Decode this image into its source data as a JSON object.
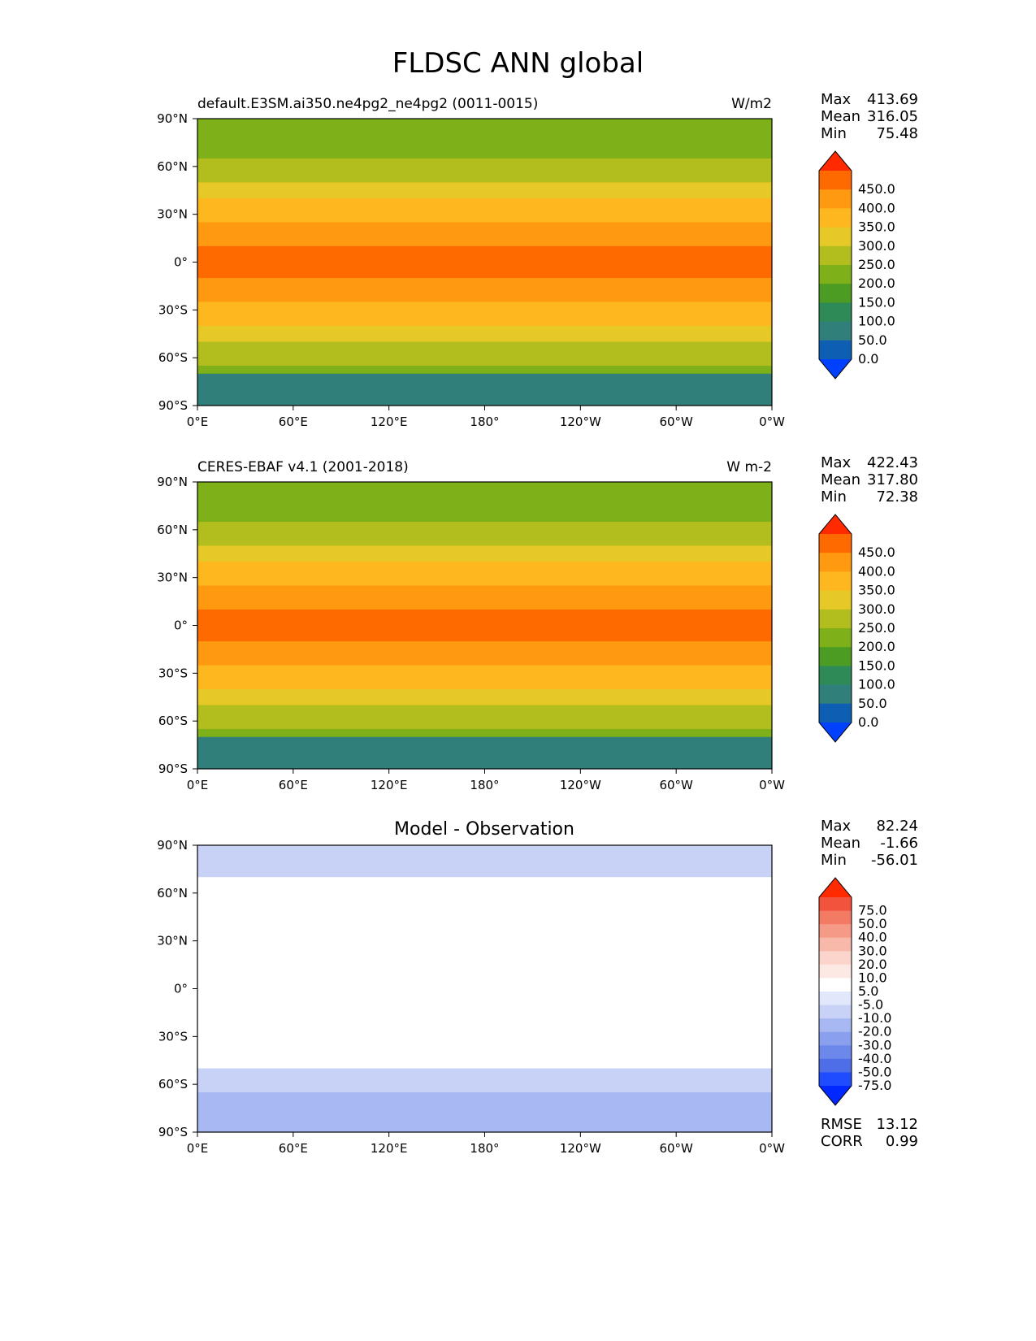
{
  "title": "FLDSC ANN global",
  "lat_ticks": [
    "90°N",
    "60°N",
    "30°N",
    "0°",
    "30°S",
    "60°S",
    "90°S"
  ],
  "lon_ticks": [
    "0°E",
    "60°E",
    "120°E",
    "180°",
    "120°W",
    "60°W",
    "0°W"
  ],
  "abs_colorbar": {
    "labels": [
      "450.0",
      "400.0",
      "350.0",
      "300.0",
      "250.0",
      "200.0",
      "150.0",
      "100.0",
      "50.0",
      "0.0"
    ],
    "colors": [
      "#ff2a00",
      "#ff6a00",
      "#ff9a10",
      "#ffb71f",
      "#e6c826",
      "#b2bd1e",
      "#7eb019",
      "#4c9c23",
      "#2e8b57",
      "#317f7a",
      "#0e5fb4",
      "#0040ff"
    ]
  },
  "diff_colorbar": {
    "labels": [
      "75.0",
      "50.0",
      "40.0",
      "30.0",
      "20.0",
      "10.0",
      "5.0",
      "-5.0",
      "-10.0",
      "-20.0",
      "-30.0",
      "-40.0",
      "-50.0",
      "-75.0"
    ],
    "colors": [
      "#ff2a00",
      "#f2533d",
      "#f37a63",
      "#f59a86",
      "#f8b9aa",
      "#fbd5cc",
      "#fde9e4",
      "#ffffff",
      "#e2e8fb",
      "#c7d2f6",
      "#a8b8f2",
      "#8aa0ee",
      "#6c88ea",
      "#4d6ee6",
      "#1f4cff",
      "#0028ff"
    ]
  },
  "panels": [
    {
      "left_title": "default.E3SM.ai350.ne4pg2_ne4pg2 (0011-0015)",
      "right_title": "W/m2",
      "center_title": "",
      "stats": {
        "max_label": "Max",
        "max": "413.69",
        "mean_label": "Mean",
        "mean": "316.05",
        "min_label": "Min",
        "min": "75.48"
      }
    },
    {
      "left_title": "CERES-EBAF v4.1 (2001-2018)",
      "right_title": "W m-2",
      "center_title": "",
      "stats": {
        "max_label": "Max",
        "max": "422.43",
        "mean_label": "Mean",
        "mean": "317.80",
        "min_label": "Min",
        "min": "72.38"
      }
    },
    {
      "left_title": "",
      "right_title": "",
      "center_title": "Model - Observation",
      "stats": {
        "max_label": "Max",
        "max": "82.24",
        "mean_label": "Mean",
        "mean": "-1.66",
        "min_label": "Min",
        "min": "-56.01"
      },
      "extra": {
        "rmse_label": "RMSE",
        "rmse": "13.12",
        "corr_label": "CORR",
        "corr": "0.99"
      }
    }
  ]
}
